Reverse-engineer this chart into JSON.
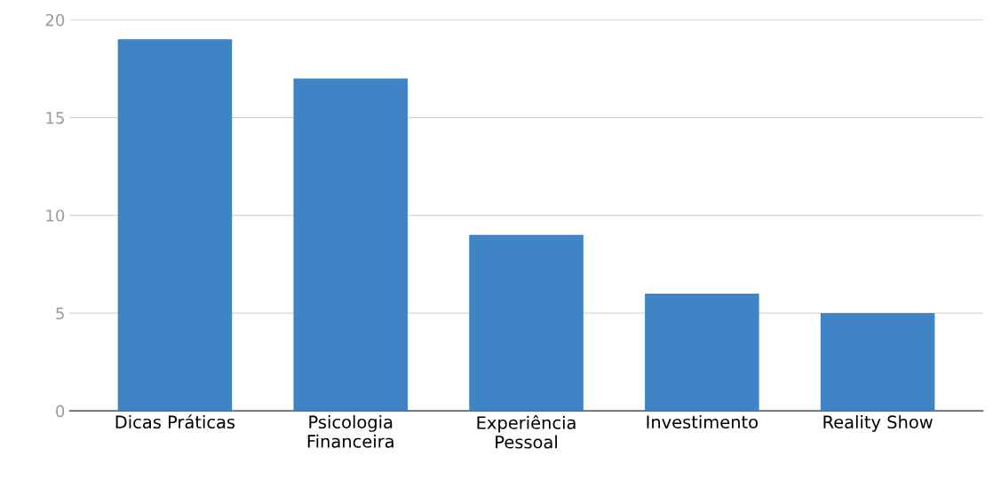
{
  "chart_data": {
    "type": "bar",
    "categories": [
      "Dicas Práticas",
      "Psicologia\nFinanceira",
      "Experiência\nPessoal",
      "Investimento",
      "Reality Show"
    ],
    "values": [
      19,
      17,
      9,
      6,
      5
    ],
    "color": "#3f84c5",
    "ylim": [
      0,
      20
    ],
    "yticks": [
      0,
      5,
      10,
      15,
      20
    ],
    "grid": "y"
  }
}
